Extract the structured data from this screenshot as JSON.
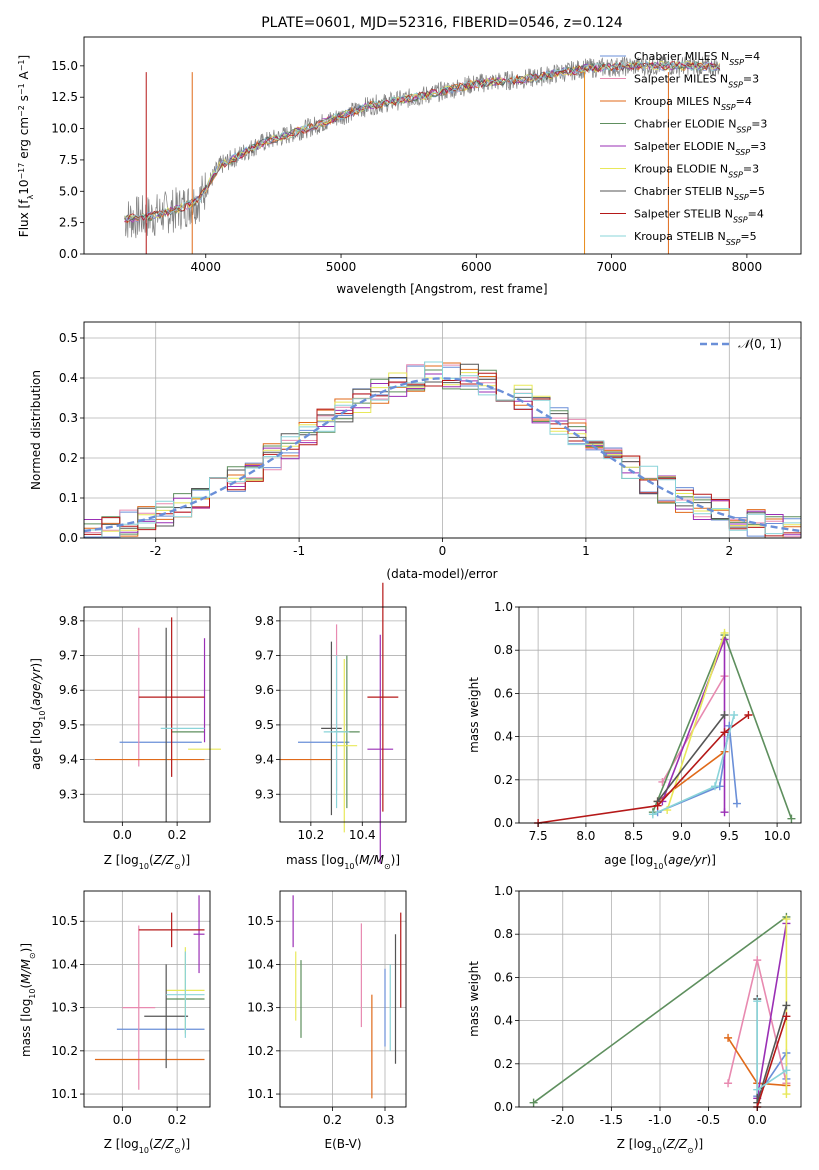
{
  "colors": {
    "grid": "#b0b0b0",
    "spectrum": "#808080",
    "normal_dash": "#6a8fd8"
  },
  "series_styles": [
    {
      "name": "Chabrier MILES",
      "nssp": "4",
      "color": "#6a8fd8"
    },
    {
      "name": "Salpeter MILES",
      "nssp": "3",
      "color": "#e88ab0"
    },
    {
      "name": "Kroupa MILES",
      "nssp": "4",
      "color": "#e06a1a"
    },
    {
      "name": "Chabrier ELODIE",
      "nssp": "3",
      "color": "#5e8f5e"
    },
    {
      "name": "Salpeter ELODIE",
      "nssp": "3",
      "color": "#9a2fb5"
    },
    {
      "name": "Kroupa ELODIE",
      "nssp": "3",
      "color": "#e8e85a"
    },
    {
      "name": "Chabrier STELIB",
      "nssp": "5",
      "color": "#555555"
    },
    {
      "name": "Salpeter STELIB",
      "nssp": "4",
      "color": "#b51818"
    },
    {
      "name": "Kroupa STELIB",
      "nssp": "5",
      "color": "#8ad4d9"
    }
  ],
  "chart_data": [
    {
      "type": "line",
      "title": "PLATE=0601, MJD=52316, FIBERID=0546, z=0.124",
      "xlabel": "wavelength [Angstrom, rest frame]",
      "ylabel": "Flux [f_λ10^-17 erg cm^-2 s^-1 A^-1]",
      "xlim": [
        3100,
        8400
      ],
      "ylim": [
        0,
        17.3
      ],
      "xticks": [
        4000,
        5000,
        6000,
        7000,
        8000
      ],
      "yticks": [
        0.0,
        2.5,
        5.0,
        7.5,
        10.0,
        12.5,
        15.0
      ],
      "legend": "top-right",
      "spectrum_trend": [
        {
          "x": 3400,
          "y": 2.8
        },
        {
          "x": 3600,
          "y": 3.0
        },
        {
          "x": 3800,
          "y": 3.6
        },
        {
          "x": 3950,
          "y": 4.3
        },
        {
          "x": 4100,
          "y": 7.0
        },
        {
          "x": 4400,
          "y": 8.8
        },
        {
          "x": 4800,
          "y": 10.2
        },
        {
          "x": 5200,
          "y": 11.8
        },
        {
          "x": 5600,
          "y": 12.6
        },
        {
          "x": 6000,
          "y": 13.6
        },
        {
          "x": 6400,
          "y": 14.0
        },
        {
          "x": 6800,
          "y": 14.8
        },
        {
          "x": 7200,
          "y": 15.0
        },
        {
          "x": 7600,
          "y": 15.0
        },
        {
          "x": 7800,
          "y": 14.9
        }
      ]
    },
    {
      "type": "line",
      "xlabel": "(data-model)/error",
      "ylabel": "Normed distribution",
      "xlim": [
        -2.5,
        2.5
      ],
      "ylim": [
        0,
        0.54
      ],
      "xticks": [
        -2,
        -1,
        0,
        1,
        2
      ],
      "yticks": [
        0.0,
        0.1,
        0.2,
        0.3,
        0.4,
        0.5
      ],
      "legend": "top-right",
      "reference": "N(0,1)",
      "note": "step histograms for each of the nine SSP fits following the normal curve"
    },
    {
      "type": "scatter",
      "xlabel": "Z [log10(Z/Z☉)]",
      "ylabel": "age [log10(age/yr)]",
      "xlim": [
        -0.14,
        0.32
      ],
      "ylim": [
        9.22,
        9.84
      ],
      "xticks": [
        0.0,
        0.2
      ],
      "yticks": [
        9.3,
        9.4,
        9.5,
        9.6,
        9.7,
        9.8
      ],
      "points": [
        {
          "x": 0.14,
          "y": 9.45,
          "xerr": 0.15,
          "yerr": 0.0
        },
        {
          "x": 0.06,
          "y": 9.58,
          "xerr": 0.0,
          "yerr": 0.2
        },
        {
          "x": 0.1,
          "y": 9.4,
          "xerr": 0.2,
          "yerr": 0.0
        },
        {
          "x": 0.24,
          "y": 9.48,
          "xerr": 0.06,
          "yerr": 0.0
        },
        {
          "x": 0.3,
          "y": 9.6,
          "xerr": 0.0,
          "yerr": 0.15
        },
        {
          "x": 0.3,
          "y": 9.43,
          "xerr": 0.06,
          "yerr": 0.0
        },
        {
          "x": 0.16,
          "y": 9.5,
          "xerr": 0.0,
          "yerr": 0.28
        },
        {
          "x": 0.18,
          "y": 9.58,
          "xerr": 0.12,
          "yerr": 0.23
        },
        {
          "x": 0.22,
          "y": 9.49,
          "xerr": 0.08,
          "yerr": 0.0
        }
      ]
    },
    {
      "type": "scatter",
      "xlabel": "mass [log10(M/M☉)]",
      "xlim": [
        10.08,
        10.57
      ],
      "ylim": [
        9.22,
        9.84
      ],
      "xticks": [
        10.2,
        10.4
      ],
      "yticks": [
        9.3,
        9.4,
        9.5,
        9.6,
        9.7,
        9.8
      ],
      "points": [
        {
          "x": 10.25,
          "y": 9.45,
          "xerr": 0.1,
          "yerr": 0.0
        },
        {
          "x": 10.3,
          "y": 9.55,
          "xerr": 0.0,
          "yerr": 0.24
        },
        {
          "x": 10.18,
          "y": 9.4,
          "xerr": 0.1,
          "yerr": 0.0
        },
        {
          "x": 10.34,
          "y": 9.48,
          "xerr": 0.05,
          "yerr": 0.22
        },
        {
          "x": 10.47,
          "y": 9.43,
          "xerr": 0.05,
          "yerr": 0.33
        },
        {
          "x": 10.33,
          "y": 9.44,
          "xerr": 0.05,
          "yerr": 0.25
        },
        {
          "x": 10.28,
          "y": 9.49,
          "xerr": 0.04,
          "yerr": 0.25
        },
        {
          "x": 10.48,
          "y": 9.58,
          "xerr": 0.06,
          "yerr": 0.33
        },
        {
          "x": 10.3,
          "y": 9.48,
          "xerr": 0.05,
          "yerr": 0.22
        }
      ]
    },
    {
      "type": "line",
      "xlabel": "age [log10(age/yr)]",
      "ylabel": "mass weight",
      "xlim": [
        7.3,
        10.25
      ],
      "ylim": [
        0,
        1.0
      ],
      "xticks": [
        7.5,
        8.0,
        8.5,
        9.0,
        9.5,
        10.0
      ],
      "yticks": [
        0.0,
        0.2,
        0.4,
        0.6,
        0.8,
        1.0
      ],
      "series": [
        {
          "name": "Chabrier MILES",
          "x": [
            8.75,
            9.4,
            9.5,
            9.58
          ],
          "y": [
            0.05,
            0.17,
            0.45,
            0.09
          ]
        },
        {
          "name": "Salpeter MILES",
          "x": [
            8.8,
            9.45
          ],
          "y": [
            0.19,
            0.68
          ]
        },
        {
          "name": "Kroupa MILES",
          "x": [
            8.75,
            9.45
          ],
          "y": [
            0.1,
            0.33
          ]
        },
        {
          "name": "Chabrier ELODIE",
          "x": [
            8.7,
            9.45,
            10.15
          ],
          "y": [
            0.05,
            0.87,
            0.02
          ]
        },
        {
          "name": "Salpeter ELODIE",
          "x": [
            8.8,
            9.45,
            9.45
          ],
          "y": [
            0.1,
            0.85,
            0.05
          ]
        },
        {
          "name": "Kroupa ELODIE",
          "x": [
            8.85,
            9.45
          ],
          "y": [
            0.06,
            0.88
          ]
        },
        {
          "name": "Chabrier STELIB",
          "x": [
            8.75,
            9.45
          ],
          "y": [
            0.1,
            0.5
          ]
        },
        {
          "name": "Salpeter STELIB",
          "x": [
            7.5,
            8.75,
            9.45,
            9.7
          ],
          "y": [
            0.0,
            0.08,
            0.42,
            0.5
          ]
        },
        {
          "name": "Kroupa STELIB",
          "x": [
            8.7,
            9.35,
            9.55
          ],
          "y": [
            0.04,
            0.17,
            0.5
          ]
        }
      ]
    },
    {
      "type": "scatter",
      "xlabel": "Z [log10(Z/Z☉)]",
      "ylabel": "mass [log10(M/M☉)]",
      "xlim": [
        -0.14,
        0.32
      ],
      "ylim": [
        10.07,
        10.57
      ],
      "xticks": [
        0.0,
        0.2
      ],
      "yticks": [
        10.1,
        10.2,
        10.3,
        10.4,
        10.5
      ],
      "points": [
        {
          "x": 0.14,
          "y": 10.25,
          "xerr": 0.16,
          "yerr": 0.0
        },
        {
          "x": 0.06,
          "y": 10.3,
          "xerr": 0.06,
          "yerr": 0.19
        },
        {
          "x": 0.1,
          "y": 10.18,
          "xerr": 0.2,
          "yerr": 0.0
        },
        {
          "x": 0.23,
          "y": 10.32,
          "xerr": 0.07,
          "yerr": 0.0
        },
        {
          "x": 0.28,
          "y": 10.47,
          "xerr": 0.02,
          "yerr": 0.09
        },
        {
          "x": 0.23,
          "y": 10.34,
          "xerr": 0.07,
          "yerr": 0.1
        },
        {
          "x": 0.16,
          "y": 10.28,
          "xerr": 0.08,
          "yerr": 0.12
        },
        {
          "x": 0.18,
          "y": 10.48,
          "xerr": 0.12,
          "yerr": 0.04
        },
        {
          "x": 0.23,
          "y": 10.33,
          "xerr": 0.07,
          "yerr": 0.1
        }
      ]
    },
    {
      "type": "scatter",
      "xlabel": "E(B-V)",
      "xlim": [
        0.1,
        0.34
      ],
      "ylim": [
        10.07,
        10.57
      ],
      "xticks": [
        0.2,
        0.3
      ],
      "yticks": [
        10.1,
        10.2,
        10.3,
        10.4,
        10.5
      ],
      "points": [
        {
          "x": 0.3,
          "y": 10.3,
          "yerr": 0.09
        },
        {
          "x": 0.255,
          "y": 10.375,
          "yerr": 0.12
        },
        {
          "x": 0.275,
          "y": 10.21,
          "yerr": 0.12
        },
        {
          "x": 0.14,
          "y": 10.32,
          "yerr": 0.09
        },
        {
          "x": 0.125,
          "y": 10.5,
          "yerr": 0.06
        },
        {
          "x": 0.13,
          "y": 10.35,
          "yerr": 0.08
        },
        {
          "x": 0.32,
          "y": 10.32,
          "yerr": 0.15
        },
        {
          "x": 0.33,
          "y": 10.41,
          "yerr": 0.11
        },
        {
          "x": 0.31,
          "y": 10.3,
          "yerr": 0.1
        }
      ]
    },
    {
      "type": "line",
      "xlabel": "Z [log10(Z/Z☉)]",
      "ylabel": "mass weight",
      "xlim": [
        -2.45,
        0.45
      ],
      "ylim": [
        0,
        1.0
      ],
      "xticks": [
        -2.0,
        -1.5,
        -1.0,
        -0.5,
        0.0
      ],
      "yticks": [
        0.0,
        0.2,
        0.4,
        0.6,
        0.8,
        1.0
      ],
      "series": [
        {
          "name": "Chabrier MILES",
          "x": [
            0.0,
            0.3,
            0.3
          ],
          "y": [
            0.05,
            0.25,
            0.13
          ]
        },
        {
          "name": "Salpeter MILES",
          "x": [
            -0.3,
            0.0,
            0.3
          ],
          "y": [
            0.11,
            0.68,
            0.11
          ]
        },
        {
          "name": "Kroupa MILES",
          "x": [
            -0.3,
            0.0,
            0.3
          ],
          "y": [
            0.32,
            0.11,
            0.1
          ]
        },
        {
          "name": "Chabrier ELODIE",
          "x": [
            -2.3,
            0.3
          ],
          "y": [
            0.02,
            0.88
          ]
        },
        {
          "name": "Salpeter ELODIE",
          "x": [
            0.0,
            0.3
          ],
          "y": [
            0.04,
            0.85
          ]
        },
        {
          "name": "Kroupa ELODIE",
          "x": [
            0.3,
            0.3
          ],
          "y": [
            0.06,
            0.87
          ]
        },
        {
          "name": "Chabrier STELIB",
          "x": [
            0.0,
            0.0,
            0.3
          ],
          "y": [
            0.5,
            0.02,
            0.47
          ]
        },
        {
          "name": "Salpeter STELIB",
          "x": [
            0.0,
            0.3
          ],
          "y": [
            0.0,
            0.42
          ]
        },
        {
          "name": "Kroupa STELIB",
          "x": [
            0.0,
            0.0,
            0.3
          ],
          "y": [
            0.49,
            0.08,
            0.17
          ]
        }
      ]
    }
  ]
}
